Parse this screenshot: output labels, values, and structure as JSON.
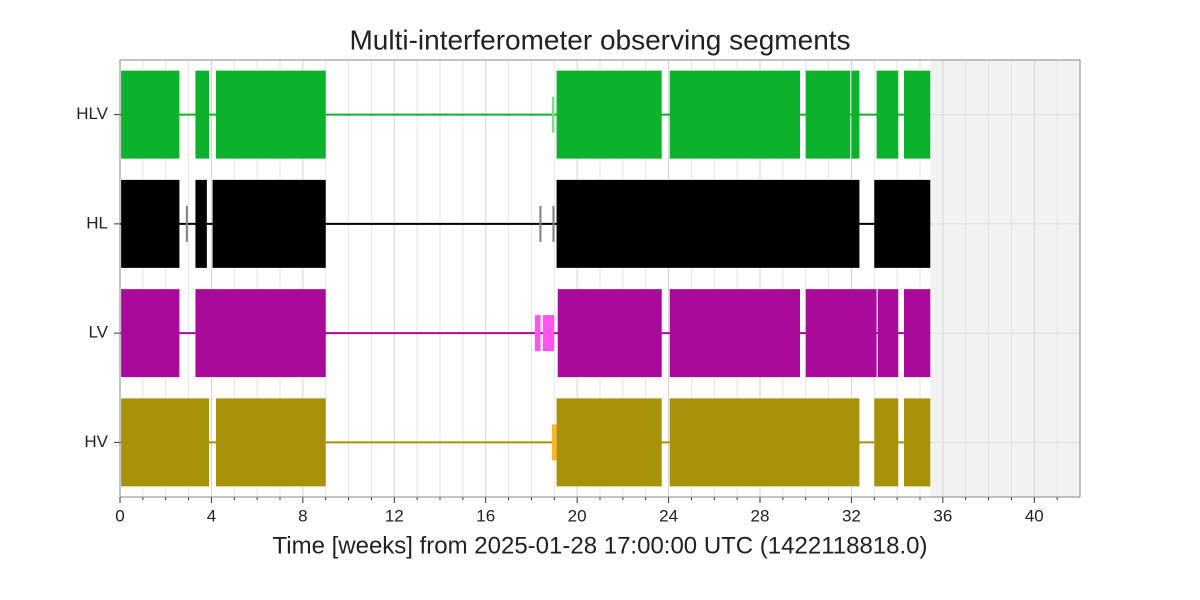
{
  "chart_data": {
    "type": "segments",
    "title": "Multi-interferometer observing segments",
    "x_label": "Time [weeks] from 2025-01-28 17:00:00 UTC (1422118818.0)",
    "xlim": [
      0,
      42
    ],
    "xticks": [
      0,
      4,
      8,
      12,
      16,
      20,
      24,
      28,
      32,
      36,
      40
    ],
    "xminorticks": [
      1,
      2,
      3,
      5,
      6,
      7,
      9,
      10,
      11,
      13,
      14,
      15,
      17,
      18,
      19,
      21,
      22,
      23,
      25,
      26,
      27,
      29,
      30,
      31,
      33,
      34,
      35,
      37,
      38,
      39,
      41
    ],
    "grid": true,
    "shaded_span": [
      35.45,
      42
    ],
    "series": [
      {
        "name": "HLV",
        "color": "#0cb22b",
        "minor_color": "#77e088",
        "segments": [
          [
            0.05,
            2.6
          ],
          [
            3.3,
            3.9
          ],
          [
            4.2,
            9.0
          ],
          [
            19.1,
            23.7
          ],
          [
            24.05,
            29.75
          ],
          [
            30.0,
            31.95
          ],
          [
            32.0,
            32.35
          ],
          [
            33.1,
            34.05
          ],
          [
            34.3,
            35.45
          ]
        ],
        "minor_segments": [
          [
            18.9,
            19.0
          ]
        ]
      },
      {
        "name": "HL",
        "color": "#000000",
        "minor_color": "#808080",
        "segments": [
          [
            0.05,
            2.6
          ],
          [
            3.3,
            3.8
          ],
          [
            4.05,
            9.0
          ],
          [
            19.1,
            32.35
          ],
          [
            33.0,
            35.45
          ]
        ],
        "minor_segments": [
          [
            2.88,
            2.95
          ],
          [
            18.35,
            18.42
          ],
          [
            18.92,
            19.0
          ]
        ]
      },
      {
        "name": "LV",
        "color": "#aa0a9a",
        "minor_color": "#ff55ee",
        "segments": [
          [
            0.05,
            2.6
          ],
          [
            3.3,
            9.0
          ],
          [
            19.15,
            23.7
          ],
          [
            24.05,
            29.75
          ],
          [
            30.0,
            33.1
          ],
          [
            33.15,
            34.05
          ],
          [
            34.3,
            35.45
          ]
        ],
        "minor_segments": [
          [
            18.15,
            18.4
          ],
          [
            18.5,
            19.0
          ]
        ]
      },
      {
        "name": "HV",
        "color": "#a8920a",
        "minor_color": "#ffb52e",
        "segments": [
          [
            0.05,
            3.9
          ],
          [
            4.2,
            9.0
          ],
          [
            19.1,
            23.7
          ],
          [
            24.05,
            32.35
          ],
          [
            33.0,
            34.05
          ],
          [
            34.3,
            35.45
          ]
        ],
        "minor_segments": [
          [
            18.9,
            19.1
          ]
        ]
      }
    ]
  }
}
